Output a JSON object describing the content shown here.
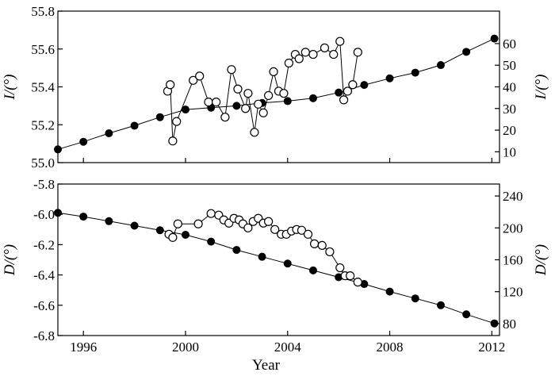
{
  "chart_data": [
    {
      "type": "line",
      "title": "",
      "xlabel": "Year",
      "ylabel": "I/(°)",
      "ylabel_right": "I/(°)",
      "xlim": [
        1995,
        2012.3
      ],
      "ylim": [
        55.0,
        55.8
      ],
      "ylim_right": [
        5,
        75
      ],
      "xticks": [
        1996,
        2000,
        2004,
        2008,
        2012
      ],
      "xtick_labels": [
        "1996",
        "2000",
        "2004",
        "2008",
        "2012"
      ],
      "yticks": [
        55.0,
        55.2,
        55.4,
        55.6,
        55.8
      ],
      "ytick_labels": [
        "55.0",
        "55.2",
        "55.4",
        "55.6",
        "55.8"
      ],
      "yticks_right": [
        10,
        20,
        30,
        40,
        50,
        60
      ],
      "ytick_labels_right": [
        "10",
        "20",
        "30",
        "40",
        "50",
        "60"
      ],
      "series": [
        {
          "axis": "left",
          "marker": "filled-circle",
          "color": "#000000",
          "x": [
            1995.0,
            1996.0,
            1997.0,
            1998.0,
            1999.0,
            2000.0,
            2001.0,
            2002.0,
            2003.0,
            2004.0,
            2005.0,
            2006.0,
            2007.0,
            2008.0,
            2009.0,
            2010.0,
            2011.0,
            2012.1
          ],
          "y": [
            55.07,
            55.11,
            55.155,
            55.195,
            55.24,
            55.28,
            55.29,
            55.3,
            55.315,
            55.325,
            55.34,
            55.37,
            55.41,
            55.445,
            55.475,
            55.515,
            55.585,
            55.655
          ]
        },
        {
          "axis": "right",
          "marker": "open-circle",
          "color": "#000000",
          "x": [
            1999.3,
            1999.4,
            1999.5,
            1999.65,
            2000.3,
            2000.55,
            2000.9,
            2001.2,
            2001.55,
            2001.8,
            2002.05,
            2002.35,
            2002.45,
            2002.7,
            2002.85,
            2003.05,
            2003.25,
            2003.45,
            2003.65,
            2003.85,
            2004.05,
            2004.3,
            2004.45,
            2004.7,
            2005.0,
            2005.45,
            2005.8,
            2006.05,
            2006.2,
            2006.35,
            2006.55,
            2006.75
          ],
          "y": [
            38,
            41,
            15,
            24,
            43,
            45,
            33,
            33,
            26,
            48,
            39,
            30,
            37,
            19,
            32,
            28,
            36,
            47,
            38,
            37,
            51,
            55,
            53,
            56,
            55,
            58,
            55,
            61,
            34,
            38,
            41,
            56
          ]
        }
      ]
    },
    {
      "type": "line",
      "title": "",
      "xlabel": "Year",
      "ylabel": "D/(°)",
      "ylabel_right": "D/(°)",
      "xlim": [
        1995,
        2012.3
      ],
      "ylim": [
        -6.8,
        -5.8
      ],
      "ylim_right": [
        65,
        255
      ],
      "xticks": [
        1996,
        2000,
        2004,
        2008,
        2012
      ],
      "xtick_labels": [
        "1996",
        "2000",
        "2004",
        "2008",
        "2012"
      ],
      "yticks": [
        -6.8,
        -6.6,
        -6.4,
        -6.2,
        -6.0,
        -5.8
      ],
      "ytick_labels": [
        "-6.8",
        "-6.6",
        "-6.4",
        "-6.2",
        "-6.0",
        "-5.8"
      ],
      "yticks_right": [
        80,
        120,
        160,
        200,
        240
      ],
      "ytick_labels_right": [
        "80",
        "120",
        "160",
        "200",
        "240"
      ],
      "series": [
        {
          "axis": "left",
          "marker": "filled-circle",
          "color": "#000000",
          "x": [
            1995.0,
            1996.0,
            1997.0,
            1998.0,
            1999.0,
            2000.0,
            2001.0,
            2002.0,
            2003.0,
            2004.0,
            2005.0,
            2006.0,
            2007.0,
            2008.0,
            2009.0,
            2010.0,
            2011.0,
            2012.1
          ],
          "y": [
            -5.99,
            -6.015,
            -6.045,
            -6.075,
            -6.105,
            -6.135,
            -6.18,
            -6.235,
            -6.28,
            -6.325,
            -6.37,
            -6.415,
            -6.46,
            -6.51,
            -6.555,
            -6.6,
            -6.66,
            -6.72
          ]
        },
        {
          "axis": "right",
          "marker": "open-circle",
          "color": "#000000",
          "x": [
            1999.35,
            1999.5,
            1999.7,
            2000.5,
            2001.0,
            2001.3,
            2001.5,
            2001.7,
            2001.9,
            2002.1,
            2002.25,
            2002.45,
            2002.65,
            2002.85,
            2003.05,
            2003.25,
            2003.5,
            2003.75,
            2003.95,
            2004.15,
            2004.35,
            2004.55,
            2004.8,
            2005.05,
            2005.35,
            2005.65,
            2006.05,
            2006.25,
            2006.45,
            2006.75
          ],
          "y": [
            192,
            188,
            205,
            205,
            218,
            216,
            210,
            206,
            212,
            210,
            205,
            200,
            208,
            212,
            206,
            208,
            198,
            192,
            192,
            196,
            198,
            197,
            192,
            180,
            178,
            170,
            150,
            140,
            140,
            132
          ]
        }
      ]
    }
  ]
}
